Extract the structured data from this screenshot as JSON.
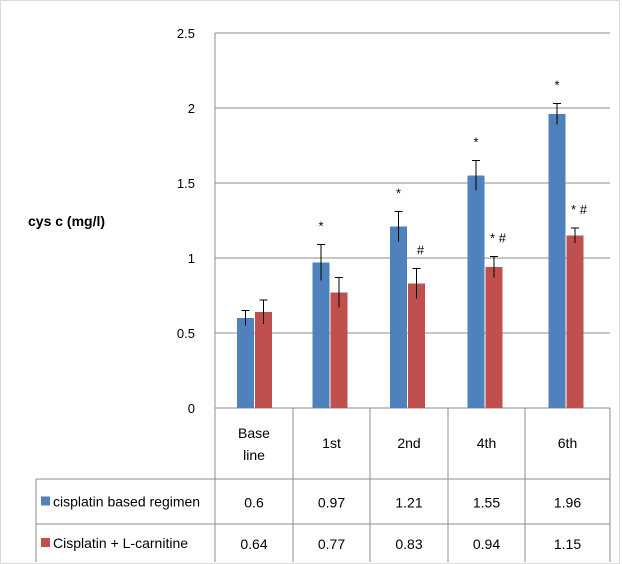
{
  "chart_data": {
    "type": "bar",
    "ylabel": "cys c (mg/l)",
    "ylim": [
      0,
      2.5
    ],
    "yticks": [
      "0",
      "0.5",
      "1",
      "1.5",
      "2",
      "2.5"
    ],
    "categories": [
      [
        "Base",
        "line"
      ],
      [
        "1st"
      ],
      [
        "2nd"
      ],
      [
        "4th"
      ],
      [
        "6th"
      ]
    ],
    "series": [
      {
        "name": "cisplatin based regimen",
        "color": "#4f81bd",
        "values": [
          0.6,
          0.97,
          1.21,
          1.55,
          1.96
        ],
        "errors": [
          0.05,
          0.12,
          0.1,
          0.1,
          0.07
        ],
        "value_labels": [
          "0.6",
          "0.97",
          "1.21",
          "1.55",
          "1.96"
        ],
        "markers": [
          "",
          "*",
          "*",
          "*",
          "*"
        ]
      },
      {
        "name": "Cisplatin + L-carnitine",
        "color": "#c0504d",
        "values": [
          0.64,
          0.77,
          0.83,
          0.94,
          1.15
        ],
        "errors": [
          0.08,
          0.1,
          0.1,
          0.07,
          0.05
        ],
        "value_labels": [
          "0.64",
          "0.77",
          "0.83",
          "0.94",
          "1.15"
        ],
        "markers": [
          "",
          "",
          "#",
          "* #",
          "* #"
        ]
      }
    ],
    "grid": "horizontal",
    "legend": "data-table"
  }
}
